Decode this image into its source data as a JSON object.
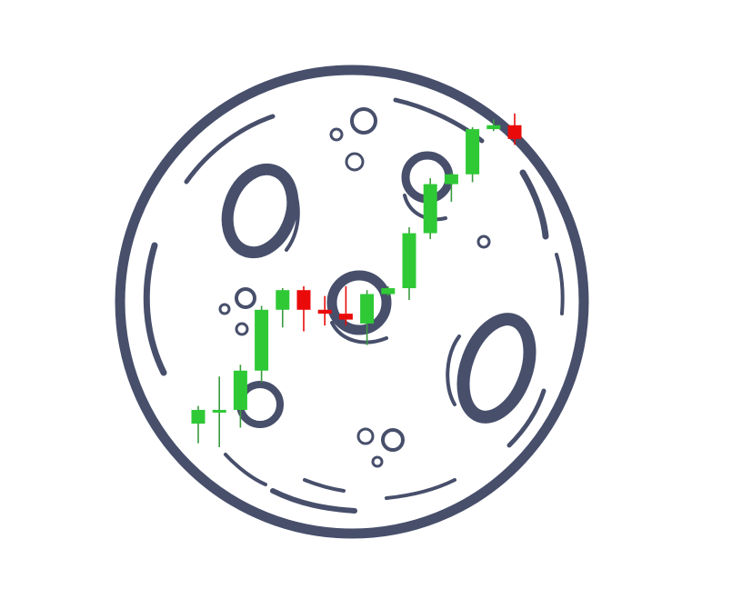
{
  "logo": {
    "icon": "moon-candlestick-logo-icon",
    "colors": {
      "background": "#ffffff",
      "moon_outline": "#474f6b",
      "bullish": "#2fc936",
      "bearish": "#ea0a0a",
      "wick": "#3a9a3f"
    },
    "candles": [
      {
        "o": 1.2,
        "h": 2.1,
        "l": 0.2,
        "c": 1.9
      },
      {
        "o": 1.9,
        "h": 3.6,
        "l": 0.0,
        "c": 1.9
      },
      {
        "o": 1.9,
        "h": 4.2,
        "l": 1.0,
        "c": 3.9
      },
      {
        "o": 3.9,
        "h": 7.2,
        "l": 3.3,
        "c": 7.0
      },
      {
        "o": 7.0,
        "h": 8.1,
        "l": 6.1,
        "c": 8.0
      },
      {
        "o": 8.0,
        "h": 8.2,
        "l": 5.9,
        "c": 7.0
      },
      {
        "o": 7.0,
        "h": 7.7,
        "l": 6.2,
        "c": 6.8
      },
      {
        "o": 6.8,
        "h": 8.2,
        "l": 6.2,
        "c": 6.5
      },
      {
        "o": 6.3,
        "h": 8.0,
        "l": 5.2,
        "c": 7.8
      },
      {
        "o": 7.8,
        "h": 8.2,
        "l": 7.7,
        "c": 8.1
      },
      {
        "o": 8.1,
        "h": 11.2,
        "l": 7.5,
        "c": 10.9
      },
      {
        "o": 10.9,
        "h": 13.7,
        "l": 10.6,
        "c": 13.4
      },
      {
        "o": 13.4,
        "h": 14.0,
        "l": 12.5,
        "c": 13.9
      },
      {
        "o": 13.9,
        "h": 16.3,
        "l": 13.5,
        "c": 16.2
      },
      {
        "o": 16.2,
        "h": 16.7,
        "l": 16.1,
        "c": 16.4
      },
      {
        "o": 16.4,
        "h": 17.0,
        "l": 15.4,
        "c": 15.7
      }
    ]
  }
}
